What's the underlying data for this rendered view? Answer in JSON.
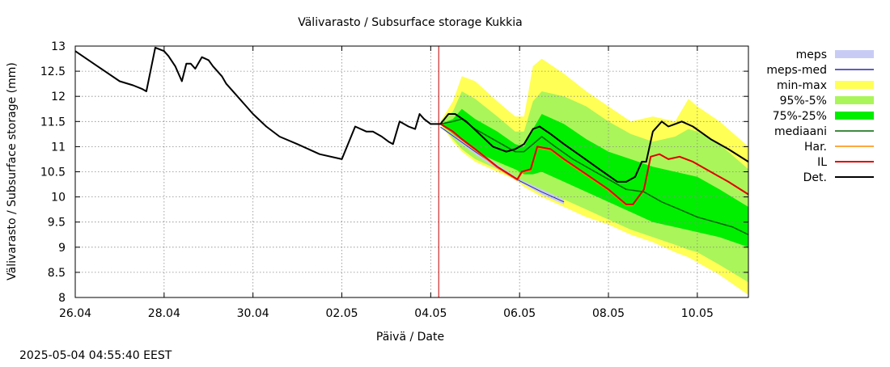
{
  "chart_data": {
    "type": "line",
    "title": "Välivarasto / Subsurface storage  Kukkia",
    "xlabel": "Päivä / Date",
    "ylabel": "Välivarasto / Subsurface storage (mm)",
    "timestamp": "2025-05-04 04:55:40 EEST",
    "x_unit": "days since 26.04",
    "xlim": [
      0,
      15.15
    ],
    "ylim": [
      8,
      13
    ],
    "grid": true,
    "legend_position": "right",
    "x_ticks": [
      {
        "x": 0,
        "label": "26.04"
      },
      {
        "x": 2,
        "label": "28.04"
      },
      {
        "x": 4,
        "label": "30.04"
      },
      {
        "x": 6,
        "label": "02.05"
      },
      {
        "x": 8,
        "label": "04.05"
      },
      {
        "x": 10,
        "label": "06.05"
      },
      {
        "x": 12,
        "label": "08.05"
      },
      {
        "x": 14,
        "label": "10.05"
      }
    ],
    "y_ticks": [
      {
        "y": 8,
        "label": "8"
      },
      {
        "y": 8.5,
        "label": "8.5"
      },
      {
        "y": 9,
        "label": "9"
      },
      {
        "y": 9.5,
        "label": "9.5"
      },
      {
        "y": 10,
        "label": "10"
      },
      {
        "y": 10.5,
        "label": "10.5"
      },
      {
        "y": 11,
        "label": "11"
      },
      {
        "y": 11.5,
        "label": "11.5"
      },
      {
        "y": 12,
        "label": "12"
      },
      {
        "y": 12.5,
        "label": "12.5"
      },
      {
        "y": 13,
        "label": "13"
      }
    ],
    "forecast_start_x": 8.18,
    "legend": [
      {
        "key": "meps",
        "label": "meps",
        "kind": "band",
        "color": "#c8ccf5"
      },
      {
        "key": "meps_med",
        "label": "meps-med",
        "kind": "line",
        "color": "#2a2aa8"
      },
      {
        "key": "minmax",
        "label": "min-max",
        "kind": "band",
        "color": "#ffff55"
      },
      {
        "key": "p95_5",
        "label": "95%-5%",
        "kind": "band",
        "color": "#aaf55a"
      },
      {
        "key": "p75_25",
        "label": "75%-25%",
        "kind": "band",
        "color": "#00ee00"
      },
      {
        "key": "mediaani",
        "label": "mediaani",
        "kind": "line",
        "color": "#006400"
      },
      {
        "key": "har",
        "label": "Har.",
        "kind": "line",
        "color": "#ff8c00"
      },
      {
        "key": "il",
        "label": "IL",
        "kind": "line",
        "color": "#e00000"
      },
      {
        "key": "det",
        "label": "Det.",
        "kind": "line",
        "color": "#000000"
      }
    ],
    "bands": [
      {
        "key": "minmax",
        "color": "#ffff55",
        "x": [
          8.22,
          8.5,
          8.7,
          9.0,
          9.5,
          9.9,
          10.1,
          10.3,
          10.5,
          11.0,
          11.5,
          12.0,
          12.5,
          13.0,
          13.5,
          13.8,
          14.0,
          14.5,
          15.15
        ],
        "upper": [
          11.5,
          11.9,
          12.4,
          12.3,
          11.9,
          11.6,
          11.6,
          12.6,
          12.75,
          12.45,
          12.1,
          11.8,
          11.5,
          11.6,
          11.5,
          11.95,
          11.8,
          11.5,
          11.0
        ],
        "lower": [
          11.45,
          11.1,
          10.9,
          10.7,
          10.5,
          10.35,
          10.2,
          10.1,
          10.0,
          9.8,
          9.6,
          9.45,
          9.25,
          9.1,
          8.9,
          8.8,
          8.7,
          8.45,
          8.05
        ]
      },
      {
        "key": "p95_5",
        "color": "#aaf55a",
        "x": [
          8.22,
          8.5,
          8.7,
          9.0,
          9.5,
          9.9,
          10.1,
          10.3,
          10.5,
          11.0,
          11.5,
          12.0,
          12.5,
          13.0,
          13.5,
          13.8,
          14.0,
          14.5,
          15.15
        ],
        "upper": [
          11.5,
          11.7,
          12.1,
          11.95,
          11.6,
          11.3,
          11.3,
          11.9,
          12.1,
          12.0,
          11.8,
          11.5,
          11.25,
          11.1,
          11.2,
          11.35,
          11.3,
          11.05,
          10.55
        ],
        "lower": [
          11.45,
          11.15,
          10.95,
          10.75,
          10.55,
          10.4,
          10.3,
          10.2,
          10.15,
          9.95,
          9.75,
          9.55,
          9.35,
          9.2,
          9.05,
          8.95,
          8.9,
          8.65,
          8.3
        ]
      },
      {
        "key": "p75_25",
        "color": "#00ee00",
        "x": [
          8.22,
          8.5,
          8.7,
          9.0,
          9.5,
          9.9,
          10.1,
          10.3,
          10.5,
          11.0,
          11.5,
          12.0,
          12.5,
          13.0,
          13.5,
          14.0,
          14.5,
          15.15
        ],
        "upper": [
          11.45,
          11.55,
          11.75,
          11.55,
          11.3,
          11.05,
          11.0,
          11.35,
          11.65,
          11.45,
          11.15,
          10.9,
          10.75,
          10.6,
          10.5,
          10.4,
          10.15,
          9.8
        ],
        "lower": [
          11.45,
          11.25,
          11.1,
          10.9,
          10.7,
          10.55,
          10.45,
          10.45,
          10.5,
          10.3,
          10.1,
          9.9,
          9.7,
          9.5,
          9.4,
          9.3,
          9.2,
          9.0
        ]
      },
      {
        "key": "meps",
        "color": "#c8ccf5",
        "x": [
          8.22,
          9.0,
          9.5,
          10.0,
          10.5,
          11.0
        ],
        "upper": [
          11.4,
          10.95,
          10.65,
          10.35,
          10.15,
          9.95
        ],
        "lower": [
          11.38,
          10.85,
          10.55,
          10.3,
          10.05,
          9.85
        ]
      }
    ],
    "series": [
      {
        "name": "Det.",
        "key": "det",
        "color": "#000000",
        "width": 2,
        "x": [
          0.0,
          0.5,
          1.0,
          1.3,
          1.5,
          1.6,
          1.8,
          2.0,
          2.1,
          2.25,
          2.4,
          2.5,
          2.6,
          2.7,
          2.85,
          3.0,
          3.1,
          3.3,
          3.4,
          3.6,
          3.8,
          4.0,
          4.3,
          4.6,
          5.0,
          5.5,
          6.0,
          6.3,
          6.55,
          6.7,
          6.9,
          7.05,
          7.15,
          7.3,
          7.5,
          7.65,
          7.75,
          7.85,
          8.0,
          8.1,
          8.22,
          8.4,
          8.55,
          8.8,
          9.1,
          9.4,
          9.7,
          9.9,
          10.1,
          10.3,
          10.45,
          10.7,
          11.0,
          11.4,
          11.8,
          12.2,
          12.4,
          12.6,
          12.75,
          12.85,
          13.0,
          13.2,
          13.35,
          13.5,
          13.65,
          13.9,
          14.3,
          14.7,
          15.15
        ],
        "y": [
          12.9,
          12.6,
          12.3,
          12.22,
          12.15,
          12.1,
          12.97,
          12.9,
          12.8,
          12.6,
          12.3,
          12.65,
          12.65,
          12.55,
          12.78,
          12.72,
          12.6,
          12.4,
          12.25,
          12.05,
          11.85,
          11.65,
          11.4,
          11.2,
          11.05,
          10.85,
          10.75,
          11.4,
          11.3,
          11.3,
          11.2,
          11.1,
          11.05,
          11.5,
          11.4,
          11.35,
          11.65,
          11.55,
          11.45,
          11.45,
          11.45,
          11.65,
          11.65,
          11.5,
          11.25,
          11.0,
          10.9,
          10.95,
          11.05,
          11.35,
          11.4,
          11.25,
          11.05,
          10.8,
          10.55,
          10.3,
          10.3,
          10.4,
          10.7,
          10.7,
          11.3,
          11.5,
          11.4,
          11.45,
          11.5,
          11.4,
          11.15,
          10.95,
          10.7
        ]
      },
      {
        "name": "IL",
        "key": "il",
        "color": "#e00000",
        "width": 2,
        "x": [
          8.22,
          8.5,
          8.7,
          9.0,
          9.5,
          9.95,
          10.05,
          10.25,
          10.4,
          10.7,
          11.0,
          11.5,
          12.0,
          12.4,
          12.55,
          12.8,
          12.95,
          13.15,
          13.35,
          13.6,
          13.9,
          14.3,
          14.7,
          15.15
        ],
        "y": [
          11.45,
          11.3,
          11.15,
          10.95,
          10.6,
          10.35,
          10.5,
          10.55,
          11.0,
          10.95,
          10.75,
          10.45,
          10.15,
          9.85,
          9.85,
          10.15,
          10.8,
          10.85,
          10.75,
          10.8,
          10.7,
          10.5,
          10.3,
          10.05
        ]
      },
      {
        "name": "Har.",
        "key": "har",
        "color": "#ff8c00",
        "width": 1.5,
        "x": [
          8.22,
          8.5,
          8.7,
          9.0,
          9.5,
          9.95,
          10.05,
          10.25,
          10.4,
          10.7,
          11.0,
          11.5,
          12.0,
          12.4,
          12.55
        ],
        "y": [
          11.45,
          11.28,
          11.13,
          10.93,
          10.58,
          10.33,
          10.48,
          10.53,
          10.98,
          10.93,
          10.73,
          10.43,
          10.13,
          9.83,
          9.83
        ]
      },
      {
        "name": "mediaani",
        "key": "mediaani",
        "color": "#006400",
        "width": 1.5,
        "x": [
          8.22,
          8.5,
          8.7,
          9.0,
          9.5,
          9.9,
          10.1,
          10.3,
          10.5,
          10.8,
          11.2,
          11.6,
          12.0,
          12.4,
          12.8,
          13.2,
          13.6,
          14.0,
          14.4,
          14.8,
          15.15
        ],
        "y": [
          11.45,
          11.5,
          11.55,
          11.35,
          11.1,
          10.9,
          10.9,
          11.05,
          11.2,
          11.0,
          10.75,
          10.55,
          10.35,
          10.15,
          10.1,
          9.9,
          9.75,
          9.6,
          9.5,
          9.4,
          9.25
        ]
      },
      {
        "name": "meps-med",
        "key": "meps_med",
        "color": "#2a2aa8",
        "width": 1,
        "x": [
          8.22,
          9.0,
          9.5,
          10.0,
          10.5,
          11.0
        ],
        "y": [
          11.39,
          10.9,
          10.6,
          10.32,
          10.1,
          9.9
        ]
      }
    ]
  }
}
